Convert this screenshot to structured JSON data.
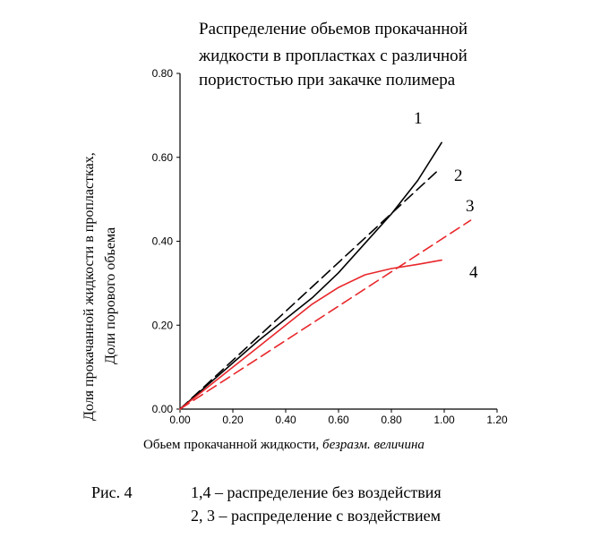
{
  "chart_data": {
    "type": "line",
    "title_lines": [
      "Распределение обьемов прокачанной",
      "жидкости в пропластках с различной",
      "пористостью при закачке полимера"
    ],
    "ylabel_lines": [
      "Доля прокачанной жидкости в пропластках,",
      "Доли порового обьема"
    ],
    "xlabel": "Обьем прокачанной жидкости,",
    "xlabel_italic": "безразм. величина",
    "xlim": [
      0.0,
      1.2
    ],
    "ylim": [
      0.0,
      0.8
    ],
    "x_ticks": [
      "0.00",
      "0.20",
      "0.40",
      "0.60",
      "0.80",
      "1.00",
      "1.20"
    ],
    "y_ticks": [
      "0.00",
      "0.20",
      "0.40",
      "0.60",
      "0.80"
    ],
    "grid": false,
    "series": [
      {
        "name": "1",
        "color": "#000000",
        "style": "solid",
        "x": [
          0.0,
          0.1,
          0.2,
          0.3,
          0.4,
          0.5,
          0.6,
          0.7,
          0.8,
          0.9,
          0.99
        ],
        "y": [
          0.0,
          0.055,
          0.11,
          0.165,
          0.215,
          0.265,
          0.325,
          0.395,
          0.465,
          0.545,
          0.635
        ]
      },
      {
        "name": "2",
        "color": "#000000",
        "style": "dashed",
        "x": [
          0.0,
          0.97
        ],
        "y": [
          0.0,
          0.565
        ]
      },
      {
        "name": "3",
        "color": "#e8272b",
        "style": "dashed",
        "x": [
          0.0,
          1.1
        ],
        "y": [
          0.0,
          0.45
        ]
      },
      {
        "name": "4",
        "color": "#e8272b",
        "style": "solid",
        "x": [
          0.0,
          0.1,
          0.2,
          0.3,
          0.4,
          0.5,
          0.6,
          0.7,
          0.8,
          0.9,
          0.99
        ],
        "y": [
          0.0,
          0.05,
          0.1,
          0.15,
          0.2,
          0.25,
          0.29,
          0.32,
          0.335,
          0.345,
          0.355
        ]
      }
    ],
    "curve_labels": [
      "1",
      "2",
      "3",
      "4"
    ]
  },
  "caption": {
    "fig": "Рис. 4",
    "line1": "1,4 – распределение без воздействия",
    "line2": "2, 3 – распределение с воздействием"
  }
}
